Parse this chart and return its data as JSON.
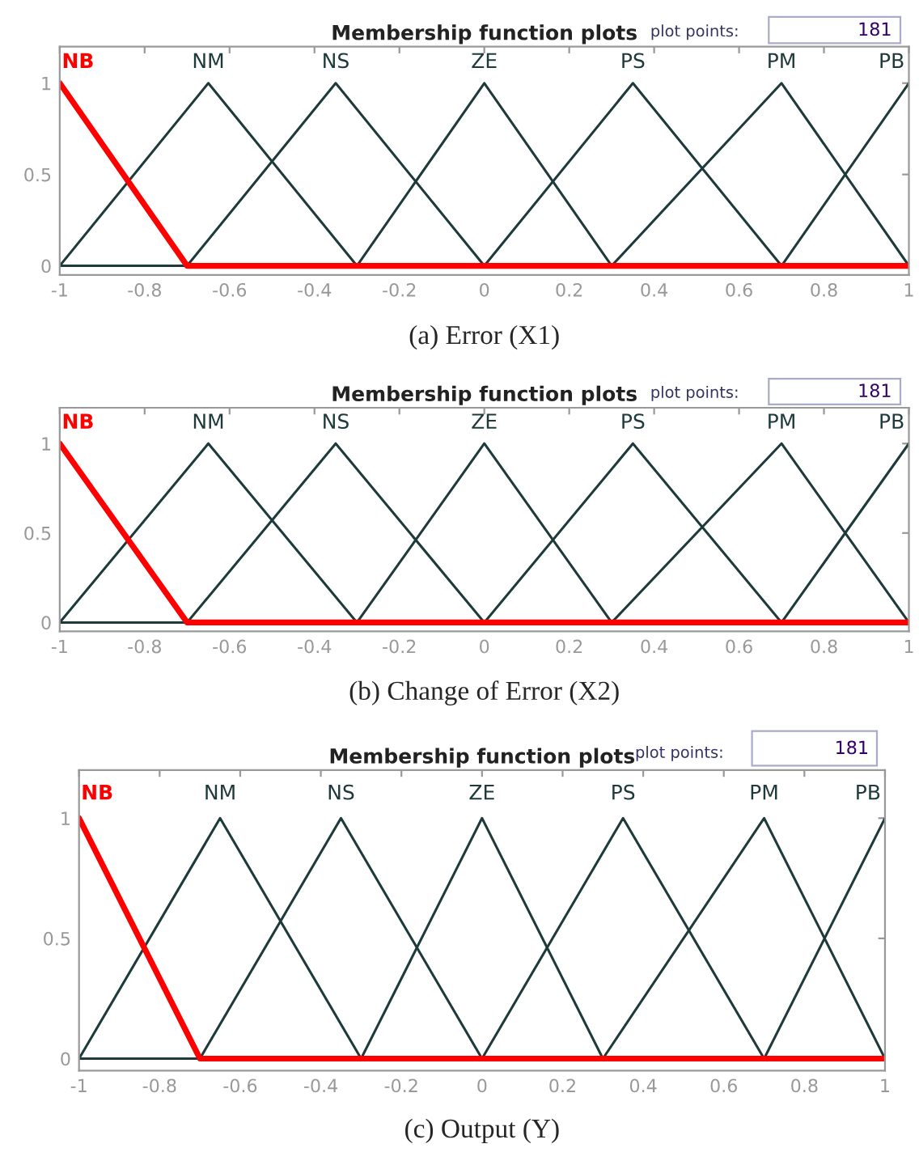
{
  "chart_data": [
    {
      "type": "line",
      "title": "Membership function plots",
      "annotations": [
        "plot points:",
        "181",
        "(a) Error (X1)"
      ],
      "xlim": [
        -1,
        1
      ],
      "ylim": [
        -0.05,
        1.2
      ],
      "xticks": [
        -1,
        -0.8,
        -0.6,
        -0.4,
        -0.2,
        0,
        0.2,
        0.4,
        0.6,
        0.8,
        1
      ],
      "yticks": [
        0,
        0.5,
        1
      ],
      "grid": false,
      "legend": false,
      "line_style": "solid",
      "series": [
        {
          "name": "NM",
          "color": "#1e3a3a",
          "x": [
            -1,
            -0.65,
            -0.3
          ],
          "values": [
            0,
            1,
            0
          ]
        },
        {
          "name": "NS",
          "color": "#1e3a3a",
          "x": [
            -1,
            -0.7,
            -0.35,
            0
          ],
          "values": [
            0,
            0,
            1,
            0
          ]
        },
        {
          "name": "ZE",
          "color": "#1e3a3a",
          "x": [
            -0.3,
            0,
            0.3
          ],
          "values": [
            0,
            1,
            0
          ]
        },
        {
          "name": "PS",
          "color": "#1e3a3a",
          "x": [
            0,
            0.35,
            0.7
          ],
          "values": [
            0,
            1,
            0
          ]
        },
        {
          "name": "PM",
          "color": "#1e3a3a",
          "x": [
            0.3,
            0.7,
            1
          ],
          "values": [
            0,
            1,
            0
          ]
        },
        {
          "name": "PB",
          "color": "#1e3a3a",
          "x": [
            0.7,
            1
          ],
          "values": [
            0,
            1
          ]
        },
        {
          "name": "NB",
          "color": "#ff0000",
          "x": [
            -1,
            -0.7,
            1
          ],
          "values": [
            1,
            0,
            0
          ]
        }
      ]
    },
    {
      "type": "line",
      "title": "Membership function plots",
      "annotations": [
        "plot points:",
        "181",
        "(b) Change of Error (X2)"
      ],
      "xlim": [
        -1,
        1
      ],
      "ylim": [
        -0.05,
        1.2
      ],
      "xticks": [
        -1,
        -0.8,
        -0.6,
        -0.4,
        -0.2,
        0,
        0.2,
        0.4,
        0.6,
        0.8,
        1
      ],
      "yticks": [
        0,
        0.5,
        1
      ],
      "grid": false,
      "legend": false,
      "line_style": "solid",
      "series": [
        {
          "name": "NM",
          "color": "#1e3a3a",
          "x": [
            -1,
            -0.65,
            -0.3
          ],
          "values": [
            0,
            1,
            0
          ]
        },
        {
          "name": "NS",
          "color": "#1e3a3a",
          "x": [
            -1,
            -0.7,
            -0.35,
            0
          ],
          "values": [
            0,
            0,
            1,
            0
          ]
        },
        {
          "name": "ZE",
          "color": "#1e3a3a",
          "x": [
            -0.3,
            0,
            0.3
          ],
          "values": [
            0,
            1,
            0
          ]
        },
        {
          "name": "PS",
          "color": "#1e3a3a",
          "x": [
            0,
            0.35,
            0.7
          ],
          "values": [
            0,
            1,
            0
          ]
        },
        {
          "name": "PM",
          "color": "#1e3a3a",
          "x": [
            0.3,
            0.7,
            1
          ],
          "values": [
            0,
            1,
            0
          ]
        },
        {
          "name": "PB",
          "color": "#1e3a3a",
          "x": [
            0.7,
            1
          ],
          "values": [
            0,
            1
          ]
        },
        {
          "name": "NB",
          "color": "#ff0000",
          "x": [
            -1,
            -0.7,
            1
          ],
          "values": [
            1,
            0,
            0
          ]
        }
      ]
    },
    {
      "type": "line",
      "title": "Membership function plots",
      "annotations": [
        "plot points:",
        "181",
        "(c) Output (Y)"
      ],
      "xlim": [
        -1,
        1
      ],
      "ylim": [
        -0.05,
        1.2
      ],
      "xticks": [
        -1,
        -0.8,
        -0.6,
        -0.4,
        -0.2,
        0,
        0.2,
        0.4,
        0.6,
        0.8,
        1
      ],
      "yticks": [
        0,
        0.5,
        1
      ],
      "grid": false,
      "legend": false,
      "line_style": "solid",
      "series": [
        {
          "name": "NM",
          "color": "#1e3a3a",
          "x": [
            -1,
            -0.65,
            -0.3
          ],
          "values": [
            0,
            1,
            0
          ]
        },
        {
          "name": "NS",
          "color": "#1e3a3a",
          "x": [
            -1,
            -0.7,
            -0.35,
            0
          ],
          "values": [
            0,
            0,
            1,
            0
          ]
        },
        {
          "name": "ZE",
          "color": "#1e3a3a",
          "x": [
            -0.3,
            0,
            0.3
          ],
          "values": [
            0,
            1,
            0
          ]
        },
        {
          "name": "PS",
          "color": "#1e3a3a",
          "x": [
            0,
            0.35,
            0.7
          ],
          "values": [
            0,
            1,
            0
          ]
        },
        {
          "name": "PM",
          "color": "#1e3a3a",
          "x": [
            0.3,
            0.7,
            1
          ],
          "values": [
            0,
            1,
            0
          ]
        },
        {
          "name": "PB",
          "color": "#1e3a3a",
          "x": [
            0.7,
            1
          ],
          "values": [
            0,
            1
          ]
        },
        {
          "name": "NB",
          "color": "#ff0000",
          "x": [
            -1,
            -0.7,
            1
          ],
          "values": [
            1,
            0,
            0
          ]
        }
      ]
    }
  ]
}
